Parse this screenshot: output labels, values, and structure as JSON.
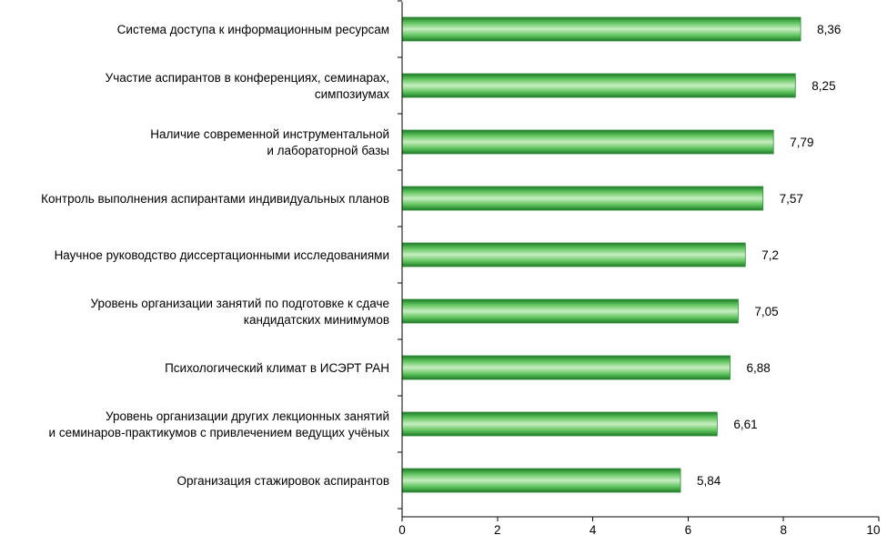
{
  "chart_data": {
    "type": "bar",
    "orientation": "horizontal",
    "categories": [
      [
        "Система доступа к информационным ресурсам"
      ],
      [
        "Участие аспирантов в конференциях, семинарах,",
        "симпозиумах"
      ],
      [
        "Наличие современной инструментальной",
        "и лабораторной базы"
      ],
      [
        "Контроль выполнения аспирантами индивидуальных планов"
      ],
      [
        "Научное руководство диссертационными исследованиями"
      ],
      [
        "Уровень организации занятий по подготовке к сдаче",
        "кандидатских минимумов"
      ],
      [
        "Психологический климат в ИСЭРТ РАН"
      ],
      [
        "Уровень организации других лекционных занятий",
        "и семинаров-практикумов с привлечением ведущих учёных"
      ],
      [
        "Организация стажировок аспирантов"
      ]
    ],
    "values": [
      8.36,
      8.25,
      7.79,
      7.57,
      7.2,
      7.05,
      6.88,
      6.61,
      5.84
    ],
    "value_labels": [
      "8,36",
      "8,25",
      "7,79",
      "7,57",
      "7,2",
      "7,05",
      "6,88",
      "6,61",
      "5,84"
    ],
    "xlim": [
      0,
      10
    ],
    "x_ticks": [
      0,
      2,
      4,
      6,
      8,
      10
    ],
    "x_tick_labels": [
      "0",
      "2",
      "4",
      "6",
      "8",
      "10"
    ],
    "title": "",
    "xlabel": "",
    "ylabel": "",
    "grid": false,
    "legend": "none",
    "colors": {
      "bar_light": "#c8eec0",
      "bar_mid": "#5cc25a",
      "bar_dark": "#1f7a2a",
      "bar_border": "#2e8b36"
    }
  }
}
